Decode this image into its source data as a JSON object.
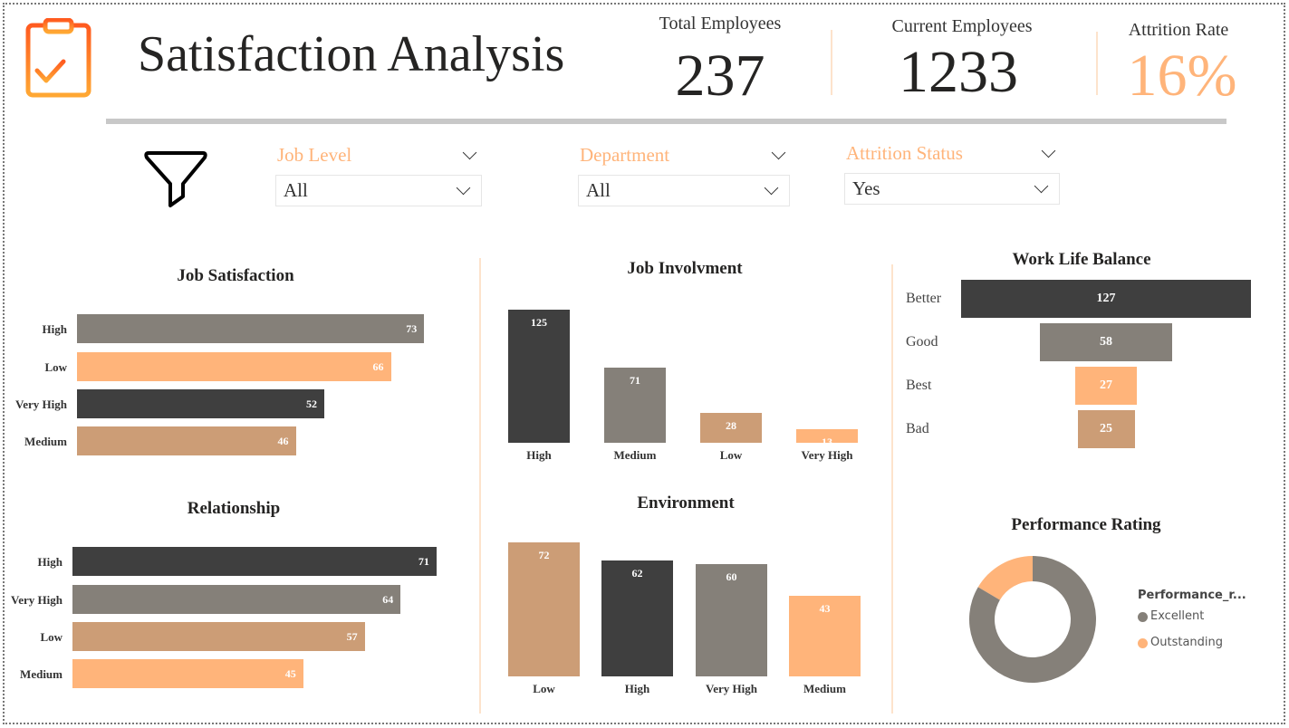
{
  "header": {
    "title": "Satisfaction Analysis",
    "icon": "clipboard-check-icon"
  },
  "kpis": [
    {
      "label": "Total Employees",
      "value": "237"
    },
    {
      "label": "Current Employees",
      "value": "1233"
    },
    {
      "label": "Attrition Rate",
      "value": "16%"
    }
  ],
  "filters": [
    {
      "label": "Job Level",
      "value": "All"
    },
    {
      "label": "Department",
      "value": "All"
    },
    {
      "label": "Attrition Status",
      "value": "Yes"
    }
  ],
  "colors": {
    "dark": "#3f3f3f",
    "gray": "#858079",
    "orange": "#ffb47a",
    "tan": "#cc9d76",
    "accent": "#ffb47a"
  },
  "chart_data": [
    {
      "id": "job_satisfaction",
      "type": "bar",
      "orientation": "horizontal",
      "title": "Job Satisfaction",
      "categories": [
        "High",
        "Low",
        "Very High",
        "Medium"
      ],
      "values": [
        73,
        66,
        52,
        46
      ],
      "colors": [
        "#858079",
        "#ffb47a",
        "#3f3f3f",
        "#cc9d76"
      ]
    },
    {
      "id": "relationship",
      "type": "bar",
      "orientation": "horizontal",
      "title": "Relationship",
      "categories": [
        "High",
        "Very High",
        "Low",
        "Medium"
      ],
      "values": [
        71,
        64,
        57,
        45
      ],
      "colors": [
        "#3f3f3f",
        "#858079",
        "#cc9d76",
        "#ffb47a"
      ]
    },
    {
      "id": "job_involvement",
      "type": "bar",
      "orientation": "vertical",
      "title": "Job Involvment",
      "categories": [
        "High",
        "Medium",
        "Low",
        "Very High"
      ],
      "values": [
        125,
        71,
        28,
        13
      ],
      "colors": [
        "#3f3f3f",
        "#858079",
        "#cc9d76",
        "#ffb47a"
      ]
    },
    {
      "id": "environment",
      "type": "bar",
      "orientation": "vertical",
      "title": "Environment",
      "categories": [
        "Low",
        "High",
        "Very High",
        "Medium"
      ],
      "values": [
        72,
        62,
        60,
        43
      ],
      "colors": [
        "#cc9d76",
        "#3f3f3f",
        "#858079",
        "#ffb47a"
      ]
    },
    {
      "id": "work_life_balance",
      "type": "funnel",
      "title": "Work Life Balance",
      "categories": [
        "Better",
        "Good",
        "Best",
        "Bad"
      ],
      "values": [
        127,
        58,
        27,
        25
      ],
      "colors": [
        "#3f3f3f",
        "#858079",
        "#ffb47a",
        "#cc9d76"
      ]
    },
    {
      "id": "performance_rating",
      "type": "pie",
      "donut": true,
      "title": "Performance Rating",
      "legend_title": "Performance_r...",
      "legend_position": "right",
      "categories": [
        "Excellent",
        "Outstanding"
      ],
      "values": [
        0.835,
        0.165
      ],
      "colors": [
        "#858079",
        "#ffb47a"
      ]
    }
  ]
}
